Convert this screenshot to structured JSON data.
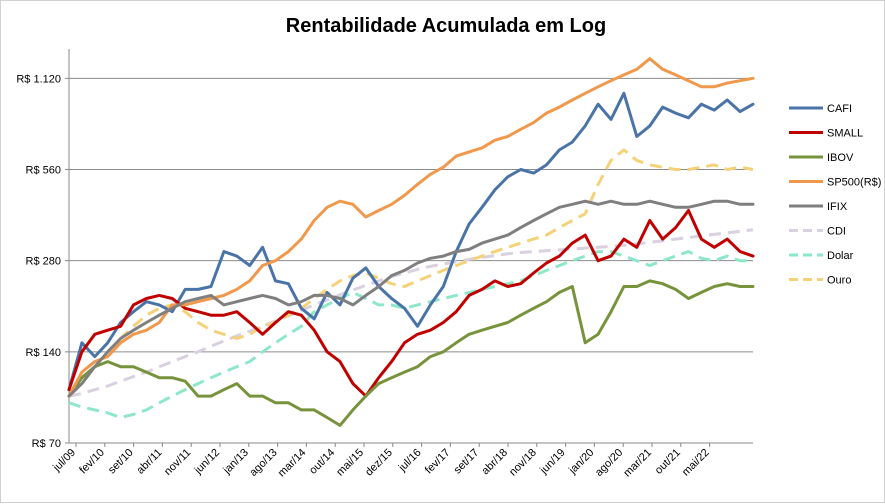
{
  "chart_data": {
    "type": "line",
    "title": "Rentabilidade Acumulada em Log",
    "y_scale": "log",
    "ylim": [
      70,
      1400
    ],
    "y_ticks": [
      70,
      140,
      280,
      560,
      1120
    ],
    "y_tick_labels": [
      "R$ 70",
      "R$ 140",
      "R$ 280",
      "R$ 560",
      "R$ 1.120"
    ],
    "grid": "horizontal",
    "legend_position": "right",
    "x_tick_labels": [
      "jul/09",
      "fev/10",
      "set/10",
      "abr/11",
      "nov/11",
      "jun/12",
      "jan/13",
      "ago/13",
      "mar/14",
      "out/14",
      "mai/15",
      "dez/15",
      "jul/16",
      "fev/17",
      "set/17",
      "abr/18",
      "nov/18",
      "jun/19",
      "jan/20",
      "ago/20",
      "mar/21",
      "out/21",
      "mai/22"
    ],
    "series": [
      {
        "name": "CAFI",
        "color": "#4a74a8",
        "dash": "solid",
        "values": [
          105,
          150,
          135,
          150,
          175,
          190,
          205,
          200,
          190,
          225,
          225,
          230,
          300,
          290,
          270,
          310,
          240,
          235,
          195,
          180,
          220,
          200,
          245,
          265,
          230,
          210,
          195,
          170,
          200,
          230,
          300,
          370,
          420,
          480,
          530,
          560,
          545,
          580,
          650,
          690,
          780,
          920,
          820,
          1000,
          720,
          780,
          900,
          860,
          830,
          920,
          880,
          950,
          870,
          920
        ]
      },
      {
        "name": "SMALL",
        "color": "#c00000",
        "dash": "solid",
        "values": [
          105,
          140,
          160,
          165,
          170,
          200,
          210,
          215,
          210,
          195,
          190,
          185,
          185,
          190,
          175,
          160,
          175,
          190,
          185,
          165,
          140,
          130,
          110,
          100,
          115,
          130,
          150,
          160,
          165,
          175,
          190,
          215,
          225,
          240,
          230,
          235,
          255,
          275,
          290,
          320,
          340,
          280,
          290,
          330,
          310,
          380,
          330,
          360,
          410,
          330,
          310,
          330,
          300,
          290
        ]
      },
      {
        "name": "IBOV",
        "color": "#77933c",
        "dash": "solid",
        "values": [
          100,
          115,
          125,
          130,
          125,
          125,
          120,
          115,
          115,
          112,
          100,
          100,
          105,
          110,
          100,
          100,
          95,
          95,
          90,
          90,
          85,
          80,
          90,
          100,
          110,
          115,
          120,
          125,
          135,
          140,
          150,
          160,
          165,
          170,
          175,
          185,
          195,
          205,
          220,
          230,
          150,
          160,
          190,
          230,
          230,
          240,
          235,
          225,
          210,
          220,
          230,
          235,
          230,
          230
        ]
      },
      {
        "name": "SP500(R$)",
        "color": "#f0984b",
        "dash": "solid",
        "values": [
          100,
          120,
          130,
          135,
          150,
          160,
          165,
          175,
          200,
          200,
          205,
          210,
          215,
          225,
          240,
          270,
          280,
          300,
          330,
          380,
          420,
          440,
          430,
          390,
          410,
          430,
          460,
          500,
          540,
          570,
          620,
          640,
          660,
          700,
          720,
          760,
          800,
          860,
          900,
          950,
          1000,
          1050,
          1100,
          1150,
          1200,
          1300,
          1200,
          1150,
          1100,
          1050,
          1050,
          1080,
          1100,
          1120
        ]
      },
      {
        "name": "IFIX",
        "color": "#7f7f7f",
        "dash": "solid",
        "values": [
          100,
          110,
          125,
          140,
          155,
          165,
          175,
          185,
          195,
          205,
          210,
          215,
          200,
          205,
          210,
          215,
          210,
          200,
          205,
          215,
          215,
          210,
          200,
          215,
          230,
          250,
          260,
          275,
          285,
          290,
          300,
          305,
          320,
          330,
          340,
          360,
          380,
          400,
          420,
          430,
          440,
          430,
          440,
          430,
          430,
          440,
          430,
          420,
          420,
          430,
          440,
          440,
          430,
          430
        ]
      },
      {
        "name": "CDI",
        "color": "#d9d0e0",
        "dash": "dashed",
        "values": [
          100,
          102,
          105,
          108,
          112,
          116,
          120,
          125,
          130,
          135,
          140,
          146,
          152,
          158,
          164,
          170,
          177,
          184,
          192,
          200,
          208,
          216,
          224,
          232,
          240,
          248,
          255,
          262,
          268,
          273,
          278,
          283,
          287,
          291,
          295,
          298,
          300,
          302,
          304,
          306,
          308,
          310,
          312,
          315,
          318,
          322,
          326,
          330,
          334,
          338,
          342,
          346,
          350,
          354
        ]
      },
      {
        "name": "Dolar",
        "color": "#8ee8c8",
        "dash": "dashed",
        "values": [
          95,
          92,
          90,
          88,
          85,
          87,
          90,
          95,
          100,
          105,
          110,
          115,
          120,
          125,
          130,
          140,
          150,
          160,
          170,
          190,
          200,
          210,
          220,
          210,
          200,
          200,
          195,
          200,
          205,
          210,
          215,
          220,
          225,
          230,
          235,
          240,
          250,
          260,
          270,
          280,
          290,
          300,
          300,
          290,
          280,
          270,
          280,
          290,
          300,
          285,
          280,
          290,
          280,
          280
        ]
      },
      {
        "name": "Ouro",
        "color": "#f5d27a",
        "dash": "dashed",
        "values": [
          100,
          110,
          125,
          140,
          155,
          170,
          185,
          195,
          200,
          190,
          175,
          165,
          160,
          155,
          160,
          170,
          175,
          185,
          195,
          210,
          225,
          240,
          250,
          255,
          245,
          235,
          230,
          240,
          250,
          260,
          270,
          280,
          290,
          300,
          310,
          320,
          330,
          340,
          360,
          380,
          400,
          500,
          600,
          650,
          600,
          580,
          570,
          560,
          560,
          570,
          580,
          560,
          570,
          560
        ]
      }
    ]
  }
}
